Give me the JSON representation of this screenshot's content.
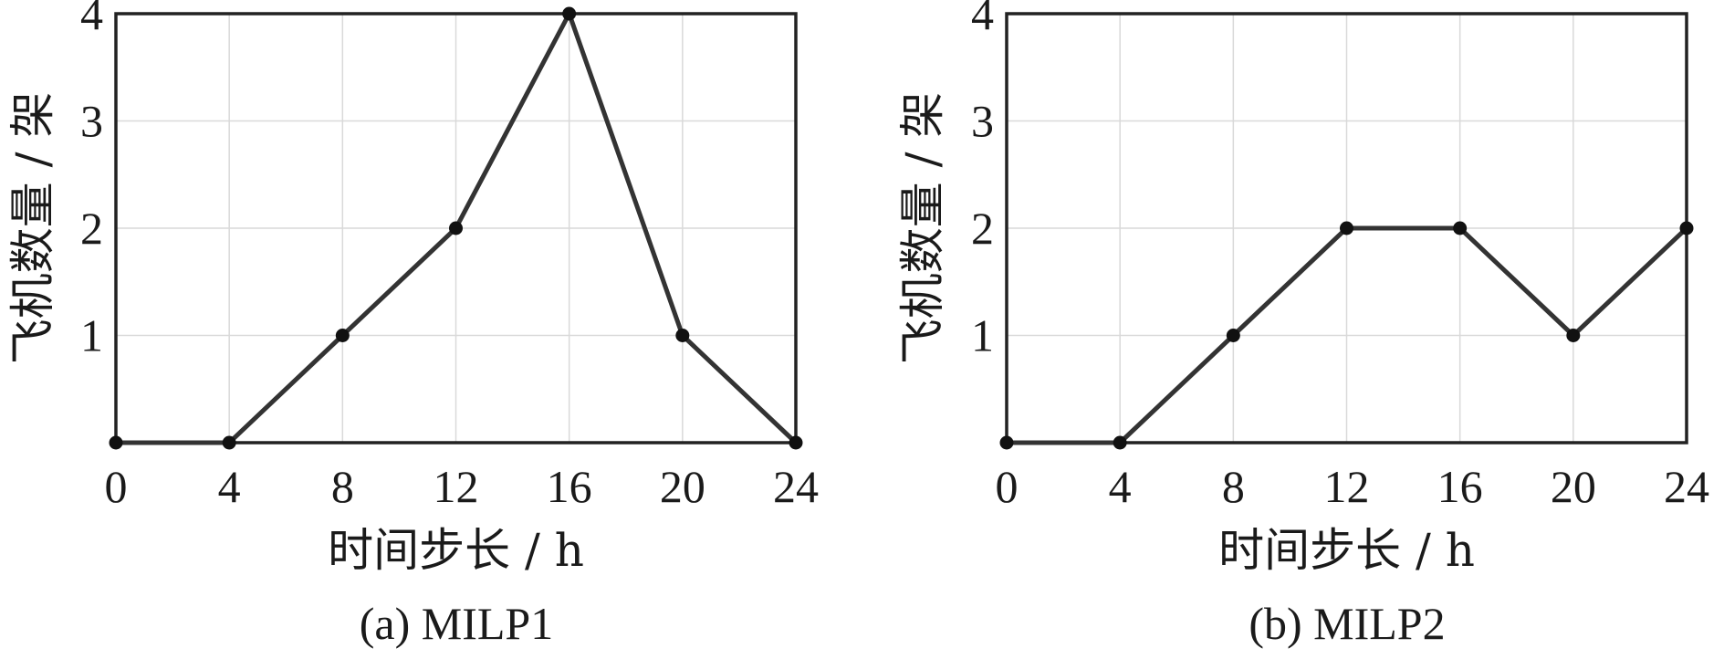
{
  "chart_data": [
    {
      "type": "line",
      "caption": "(a) MILP1",
      "xlabel": "时间步长 / h",
      "ylabel": "飞机数量 / 架",
      "x": [
        0,
        4,
        8,
        12,
        16,
        20,
        24
      ],
      "series": [
        {
          "values": [
            0,
            0,
            1,
            2,
            4,
            1,
            0
          ]
        }
      ],
      "xticks": [
        0,
        4,
        8,
        12,
        16,
        20,
        24
      ],
      "yticks": [
        1,
        2,
        3,
        4
      ],
      "xlim": [
        0,
        24
      ],
      "ylim": [
        0,
        4
      ],
      "grid": true
    },
    {
      "type": "line",
      "caption": "(b) MILP2",
      "xlabel": "时间步长 / h",
      "ylabel": "飞机数量 / 架",
      "x": [
        0,
        4,
        8,
        12,
        16,
        20,
        24
      ],
      "series": [
        {
          "values": [
            0,
            0,
            1,
            2,
            2,
            1,
            2
          ]
        }
      ],
      "xticks": [
        0,
        4,
        8,
        12,
        16,
        20,
        24
      ],
      "yticks": [
        1,
        2,
        3,
        4
      ],
      "xlim": [
        0,
        24
      ],
      "ylim": [
        0,
        4
      ],
      "grid": true
    }
  ],
  "colors": {
    "line": "#333333",
    "marker": "#111111",
    "frame": "#222222",
    "grid": "#d9d9d9"
  }
}
